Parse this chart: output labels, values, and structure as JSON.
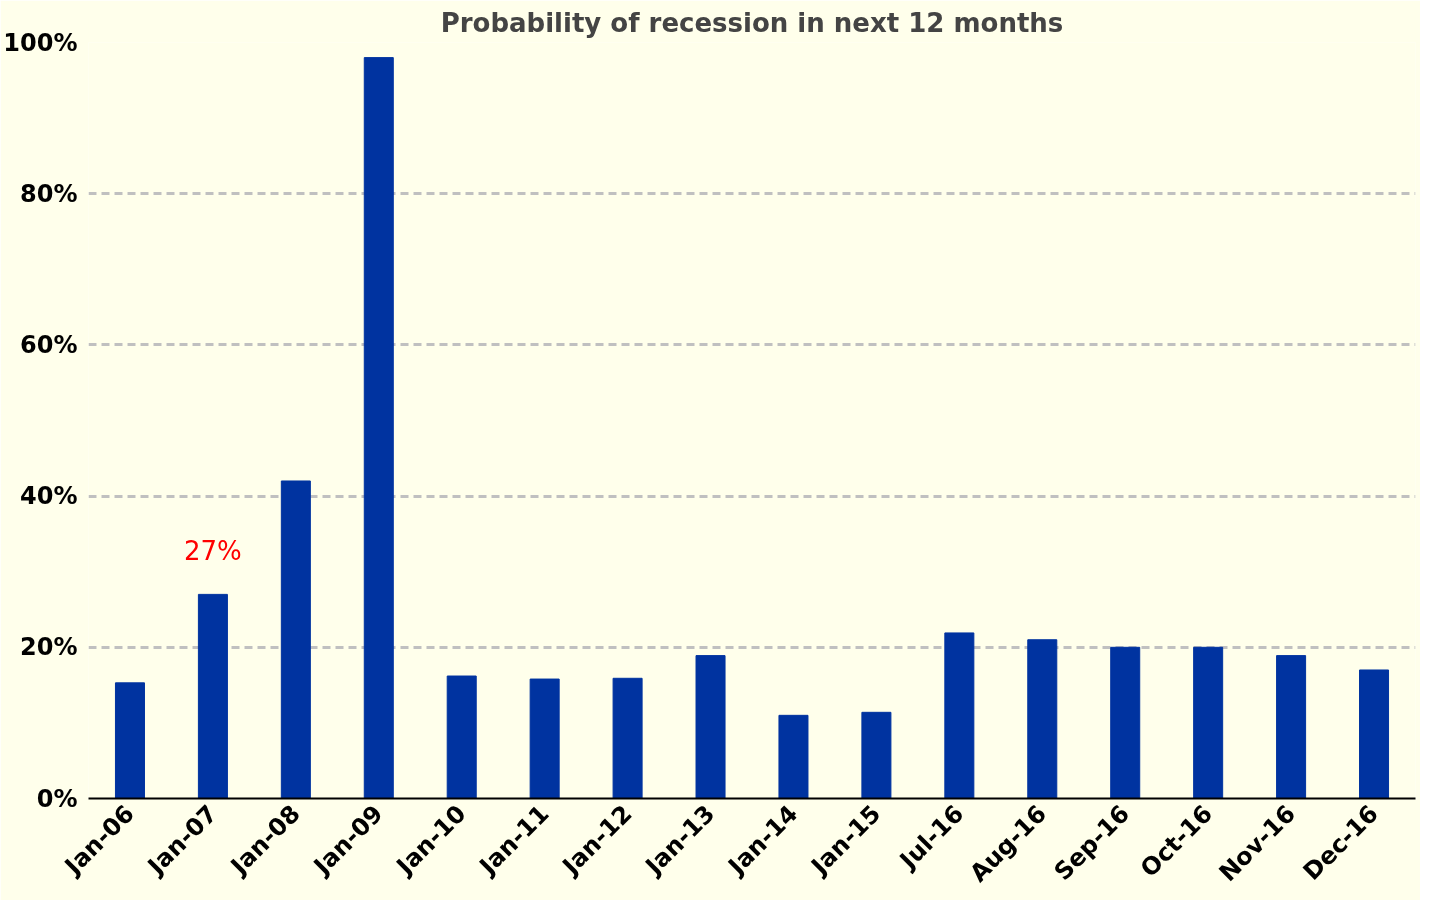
{
  "chart_data": {
    "type": "bar",
    "title": "Probability of recession in next 12 months",
    "categories": [
      "Jan-06",
      "Jan-07",
      "Jan-08",
      "Jan-09",
      "Jan-10",
      "Jan-11",
      "Jan-12",
      "Jan-13",
      "Jan-14",
      "Jan-15",
      "Jul-16",
      "Aug-16",
      "Sep-16",
      "Oct-16",
      "Nov-16",
      "Dec-16"
    ],
    "values": [
      15.3,
      27,
      42,
      98,
      16.2,
      15.8,
      15.9,
      18.9,
      11,
      11.4,
      21.9,
      21,
      20,
      20,
      18.9,
      17
    ],
    "color": "#0033a0",
    "ylim": [
      0,
      100
    ],
    "yticks": [
      {
        "value": 0,
        "label": "0%"
      },
      {
        "value": 20,
        "label": "20%"
      },
      {
        "value": 40,
        "label": "40%"
      },
      {
        "value": 60,
        "label": "60%"
      },
      {
        "value": 80,
        "label": "80%"
      },
      {
        "value": 100,
        "label": "100%"
      }
    ],
    "grid": "y",
    "annotations": [
      {
        "text": "27%",
        "x": "Jan-07",
        "y": 27
      }
    ]
  }
}
